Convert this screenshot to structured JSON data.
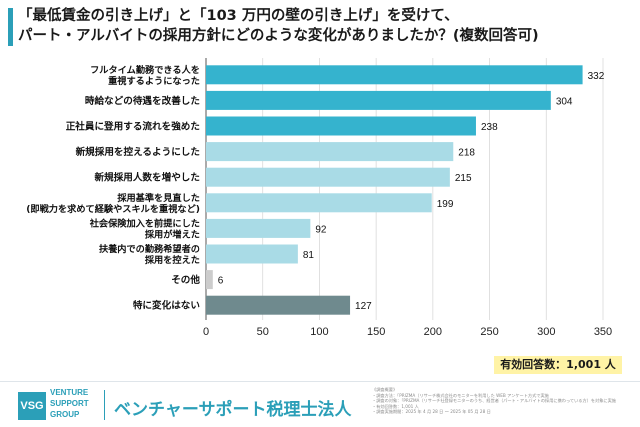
{
  "title": {
    "line1": "「最低賃金の引き上げ」と「103 万円の壁の引き上げ」を受けて、",
    "line2": "パート・アルバイトの採用方針にどのような変化がありましたか？(複数回答可)"
  },
  "colors": {
    "accent": "#2b9fb8",
    "bar_top3": "#35b3ce",
    "bar_mid": "#a9dbe6",
    "bar_other": "#cccccc",
    "bar_none": "#6f8a8e",
    "highlight_bg": "#fff3a6"
  },
  "chart_data": {
    "type": "bar",
    "orientation": "horizontal",
    "categories": [
      "フルタイム勤務できる人を\n重視するようになった",
      "時給などの待遇を改善した",
      "正社員に登用する流れを強めた",
      "新規採用を控えるようにした",
      "新規採用人数を増やした",
      "採用基準を見直した\n(即戦力を求めて経験やスキルを重視など)",
      "社会保険加入を前提にした\n採用が増えた",
      "扶養内での勤務希望者の\n採用を控えた",
      "その他",
      "特に変化はない"
    ],
    "values": [
      332,
      304,
      238,
      218,
      215,
      199,
      92,
      81,
      6,
      127
    ],
    "bar_color_keys": [
      "bar_top3",
      "bar_top3",
      "bar_top3",
      "bar_mid",
      "bar_mid",
      "bar_mid",
      "bar_mid",
      "bar_mid",
      "bar_other",
      "bar_none"
    ],
    "xlim": [
      0,
      350
    ],
    "xticks": [
      0,
      50,
      100,
      150,
      200,
      250,
      300,
      350
    ],
    "grid": true,
    "legend": "none"
  },
  "total_label": "有効回答数：1,001 人",
  "logo": {
    "mark": "VSG",
    "lines": [
      "VENTURE",
      "SUPPORT",
      "GROUP"
    ]
  },
  "company_name": "ベンチャーサポート税理士法人",
  "notes": [
    "《調査概要》",
    "・調査方法：「PRIZMA（リサーチ株式会社のモニターを利用した WEB アンケート方式で実施",
    "・調査の対象：「PRIZMA（リサーチ社登録モニターのうち、経営者（パート・アルバイトの採用に携わっている方）を対象に実施",
    "・有効回答数：1,001 人",
    "・調査実施期間：2025 年 4 月 28 日 ～ 2025 年 05 月 28 日"
  ]
}
